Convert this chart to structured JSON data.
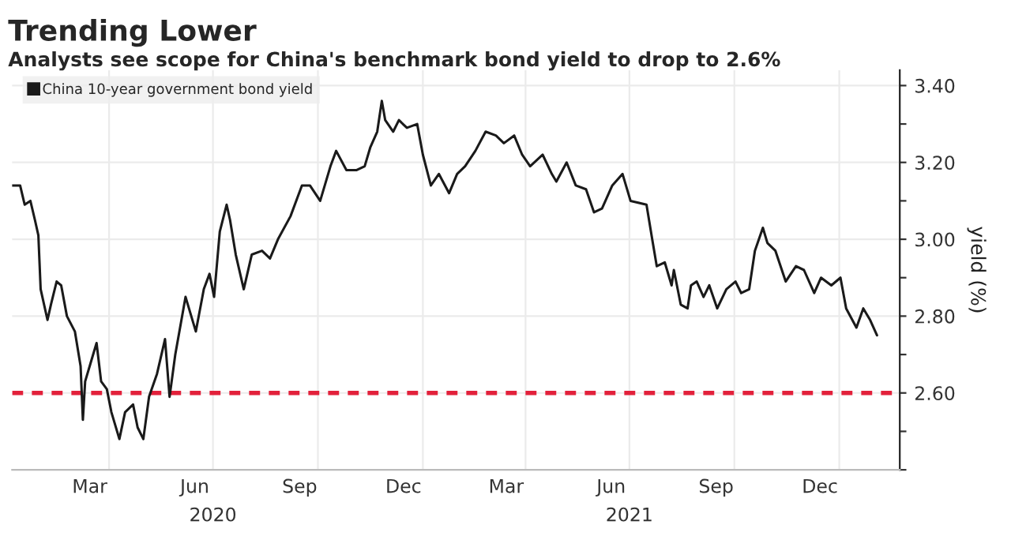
{
  "chart_data": {
    "type": "line",
    "title": "Trending Lower",
    "subtitle": "Analysts see scope for China's benchmark bond yield to drop to 2.6%",
    "ylabel": "yield (%)",
    "x": [
      "2020-01-07",
      "2020-01-14",
      "2020-01-18",
      "2020-01-23",
      "2020-01-27",
      "2020-01-30",
      "2020-02-01",
      "2020-02-07",
      "2020-02-10",
      "2020-02-15",
      "2020-02-19",
      "2020-02-24",
      "2020-03-02",
      "2020-03-07",
      "2020-03-09",
      "2020-03-11",
      "2020-03-16",
      "2020-03-21",
      "2020-03-25",
      "2020-03-30",
      "2020-04-03",
      "2020-04-10",
      "2020-04-15",
      "2020-04-22",
      "2020-04-26",
      "2020-05-01",
      "2020-05-06",
      "2020-05-13",
      "2020-05-20",
      "2020-05-24",
      "2020-05-29",
      "2020-06-07",
      "2020-06-16",
      "2020-06-23",
      "2020-06-28",
      "2020-07-02",
      "2020-07-07",
      "2020-07-13",
      "2020-07-16",
      "2020-07-21",
      "2020-07-28",
      "2020-08-04",
      "2020-08-13",
      "2020-08-20",
      "2020-08-27",
      "2020-09-07",
      "2020-09-17",
      "2020-09-24",
      "2020-10-03",
      "2020-10-12",
      "2020-10-17",
      "2020-10-26",
      "2020-11-04",
      "2020-11-11",
      "2020-11-16",
      "2020-11-22",
      "2020-11-26",
      "2020-11-29",
      "2020-12-06",
      "2020-12-11",
      "2020-12-18",
      "2020-12-27",
      "2021-01-01",
      "2021-01-08",
      "2021-01-15",
      "2021-01-24",
      "2021-01-31",
      "2021-02-07",
      "2021-02-16",
      "2021-02-25",
      "2021-03-06",
      "2021-03-13",
      "2021-03-22",
      "2021-03-29",
      "2021-04-05",
      "2021-04-16",
      "2021-04-24",
      "2021-04-28",
      "2021-05-07",
      "2021-05-15",
      "2021-05-24",
      "2021-05-31",
      "2021-06-07",
      "2021-06-16",
      "2021-06-25",
      "2021-07-02",
      "2021-07-16",
      "2021-07-21",
      "2021-07-25",
      "2021-08-01",
      "2021-08-07",
      "2021-08-09",
      "2021-08-15",
      "2021-08-21",
      "2021-08-24",
      "2021-08-29",
      "2021-09-04",
      "2021-09-09",
      "2021-09-16",
      "2021-09-24",
      "2021-10-02",
      "2021-10-07",
      "2021-10-14",
      "2021-10-19",
      "2021-10-26",
      "2021-10-30",
      "2021-11-06",
      "2021-11-15",
      "2021-11-24",
      "2021-12-01",
      "2021-12-10",
      "2021-12-16",
      "2021-12-25",
      "2022-01-02",
      "2022-01-07",
      "2022-01-16",
      "2022-01-22",
      "2022-01-28",
      "2022-02-03"
    ],
    "series": [
      {
        "name": "China 10-year government bond yield",
        "color": "#1a1a1a",
        "values": [
          3.14,
          3.14,
          3.09,
          3.1,
          3.05,
          3.01,
          2.87,
          2.79,
          2.83,
          2.89,
          2.88,
          2.8,
          2.76,
          2.67,
          2.53,
          2.63,
          2.68,
          2.73,
          2.63,
          2.61,
          2.55,
          2.48,
          2.55,
          2.57,
          2.51,
          2.48,
          2.59,
          2.65,
          2.74,
          2.59,
          2.7,
          2.85,
          2.76,
          2.87,
          2.91,
          2.85,
          3.02,
          3.09,
          3.05,
          2.96,
          2.87,
          2.96,
          2.97,
          2.95,
          3.0,
          3.06,
          3.14,
          3.14,
          3.1,
          3.19,
          3.23,
          3.18,
          3.18,
          3.19,
          3.24,
          3.28,
          3.36,
          3.31,
          3.28,
          3.31,
          3.29,
          3.3,
          3.22,
          3.14,
          3.17,
          3.12,
          3.17,
          3.19,
          3.23,
          3.28,
          3.27,
          3.25,
          3.27,
          3.22,
          3.19,
          3.22,
          3.17,
          3.15,
          3.2,
          3.14,
          3.13,
          3.07,
          3.08,
          3.14,
          3.17,
          3.1,
          3.09,
          3.0,
          2.93,
          2.94,
          2.88,
          2.92,
          2.83,
          2.82,
          2.88,
          2.89,
          2.85,
          2.88,
          2.82,
          2.87,
          2.89,
          2.86,
          2.87,
          2.97,
          3.03,
          2.99,
          2.97,
          2.89,
          2.93,
          2.92,
          2.86,
          2.9,
          2.88,
          2.9,
          2.82,
          2.77,
          2.82,
          2.79,
          2.75
        ]
      }
    ],
    "xlim": [
      "2020-01-07",
      "2022-02-23"
    ],
    "xticks": [
      {
        "value": "2020-03-15",
        "label": "Mar"
      },
      {
        "value": "2020-04-01",
        "label": null
      },
      {
        "value": "2020-06-15",
        "label": "Jun"
      },
      {
        "value": "2020-07-01",
        "label": null
      },
      {
        "value": "2020-09-15",
        "label": "Sep"
      },
      {
        "value": "2020-10-01",
        "label": null
      },
      {
        "value": "2020-12-15",
        "label": "Dec"
      },
      {
        "value": "2021-01-01",
        "label": null
      },
      {
        "value": "2021-03-15",
        "label": "Mar"
      },
      {
        "value": "2021-04-01",
        "label": null
      },
      {
        "value": "2021-06-15",
        "label": "Jun"
      },
      {
        "value": "2021-07-01",
        "label": null
      },
      {
        "value": "2021-09-15",
        "label": "Sep"
      },
      {
        "value": "2021-10-01",
        "label": null
      },
      {
        "value": "2021-12-15",
        "label": "Dec"
      },
      {
        "value": "2022-01-01",
        "label": null
      }
    ],
    "ylim": [
      2.4,
      3.44
    ],
    "yticks": [
      {
        "value": 2.4,
        "label": null
      },
      {
        "value": 2.5,
        "label": null
      },
      {
        "value": 2.6,
        "label": "2.60"
      },
      {
        "value": 2.7,
        "label": null
      },
      {
        "value": 2.8,
        "label": "2.80"
      },
      {
        "value": 2.9,
        "label": null
      },
      {
        "value": 3.0,
        "label": "3.00"
      },
      {
        "value": 3.1,
        "label": null
      },
      {
        "value": 3.2,
        "label": "3.20"
      },
      {
        "value": 3.3,
        "label": null
      },
      {
        "value": 3.4,
        "label": "3.40"
      }
    ],
    "ref_lines": [
      {
        "axis": "y",
        "value": 2.6,
        "color": "#e2213b",
        "line_style": "dashed"
      }
    ],
    "annotations": [
      "2020",
      "2021"
    ],
    "grid": true,
    "legend": "top left",
    "line_style": "solid",
    "marker": "none"
  }
}
